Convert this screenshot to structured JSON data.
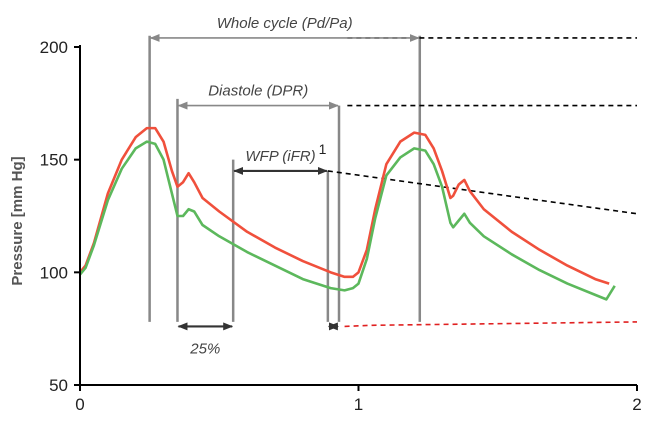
{
  "chart_data": {
    "type": "line",
    "title": "",
    "xlabel": "",
    "ylabel": "Pressure [mm Hg]",
    "xlim": [
      0,
      2
    ],
    "ylim": [
      50,
      200
    ],
    "xticks": [
      0,
      1,
      2
    ],
    "yticks": [
      50,
      100,
      150,
      200
    ],
    "grid": false,
    "legend": "none",
    "colors": {
      "upper": "#f0503c",
      "lower": "#5cb85c",
      "marker": "#888888",
      "dashed_black": "#000000",
      "dashed_red": "#e02020"
    },
    "series": [
      {
        "color": "#f0503c",
        "x": [
          0.0,
          0.02,
          0.05,
          0.1,
          0.15,
          0.2,
          0.24,
          0.27,
          0.3,
          0.33,
          0.35,
          0.37,
          0.39,
          0.41,
          0.44,
          0.5,
          0.6,
          0.7,
          0.8,
          0.9,
          0.95,
          0.98,
          1.0,
          1.03,
          1.06,
          1.1,
          1.15,
          1.2,
          1.24,
          1.27,
          1.3,
          1.33,
          1.34,
          1.36,
          1.38,
          1.4,
          1.45,
          1.55,
          1.65,
          1.75,
          1.85,
          1.9
        ],
        "y": [
          100,
          103,
          113,
          135,
          150,
          160,
          164,
          164,
          158,
          145,
          138,
          140,
          144,
          140,
          133,
          127,
          118,
          111,
          105,
          100,
          98,
          98,
          100,
          110,
          128,
          148,
          158,
          162,
          161,
          155,
          145,
          133,
          134,
          139,
          141,
          136,
          128,
          118,
          110,
          103,
          97,
          95
        ]
      },
      {
        "color": "#5cb85c",
        "x": [
          0.0,
          0.02,
          0.05,
          0.1,
          0.15,
          0.2,
          0.24,
          0.27,
          0.3,
          0.33,
          0.35,
          0.37,
          0.39,
          0.41,
          0.44,
          0.5,
          0.6,
          0.7,
          0.8,
          0.9,
          0.95,
          0.98,
          1.0,
          1.03,
          1.06,
          1.1,
          1.15,
          1.2,
          1.24,
          1.27,
          1.3,
          1.33,
          1.34,
          1.36,
          1.38,
          1.4,
          1.45,
          1.55,
          1.65,
          1.75,
          1.85,
          1.89,
          1.92
        ],
        "y": [
          99,
          102,
          112,
          132,
          146,
          155,
          158,
          157,
          150,
          135,
          125,
          125,
          128,
          127,
          121,
          116,
          109,
          103,
          97,
          93,
          92,
          93,
          95,
          106,
          124,
          143,
          151,
          155,
          154,
          148,
          138,
          122,
          120,
          123,
          126,
          122,
          116,
          108,
          101,
          95,
          90,
          88,
          94
        ]
      }
    ],
    "markers": [
      {
        "x": 0.25,
        "ytop": 205,
        "ybot": 78
      },
      {
        "x": 0.35,
        "ytop": 177,
        "ybot": 78
      },
      {
        "x": 0.55,
        "ytop": 150,
        "ybot": 78
      },
      {
        "x": 0.89,
        "ytop": 145,
        "ybot": 78
      },
      {
        "x": 0.93,
        "ytop": 174,
        "ybot": 78
      },
      {
        "x": 1.22,
        "ytop": 205,
        "ybot": 78
      }
    ],
    "intervals": [
      {
        "label": "Whole cycle (Pd/Pa)",
        "x0": 0.25,
        "x1": 1.22,
        "y": 204
      },
      {
        "label": "Diastole (DPR)",
        "x0": 0.35,
        "x1": 0.93,
        "y": 174
      },
      {
        "label": "WFP (iFR)",
        "superscript": "1",
        "x0": 0.55,
        "x1": 0.89,
        "y": 145
      },
      {
        "label": "25%",
        "x0": 0.35,
        "x1": 0.55,
        "y": 76
      },
      {
        "label": "",
        "x0": 0.89,
        "x1": 0.93,
        "y": 76
      }
    ],
    "dashed_lines": [
      {
        "color": "#000000",
        "x": [
          0.96,
          2.0
        ],
        "y": [
          204,
          204
        ]
      },
      {
        "color": "#000000",
        "x": [
          0.96,
          2.0
        ],
        "y": [
          174,
          174
        ]
      },
      {
        "color": "#000000",
        "x": [
          0.89,
          2.0
        ],
        "y": [
          145,
          126
        ]
      },
      {
        "color": "#e02020",
        "x": [
          0.95,
          1.05,
          2.0
        ],
        "y": [
          76,
          76.5,
          78
        ]
      }
    ]
  }
}
